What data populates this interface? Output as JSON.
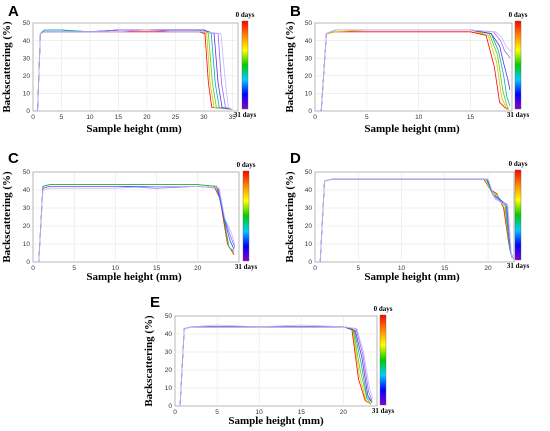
{
  "colors": {
    "series_colors": [
      "#ff0000",
      "#ff8800",
      "#cccc00",
      "#66cc00",
      "#00bb66",
      "#00aacc",
      "#2255ff",
      "#6633cc",
      "#9966ff",
      "#aa88ee",
      "#c8b8f0"
    ],
    "grid": "#e6e6e6",
    "axis": "#888888"
  },
  "colorbar": {
    "top_label": "0 days",
    "bottom_label": "31 days",
    "gradient": [
      "#ff0000",
      "#ff8800",
      "#ffff00",
      "#00cc00",
      "#00ccff",
      "#0000ff",
      "#8800cc"
    ]
  },
  "chart_data": [
    {
      "panel": "A",
      "type": "line",
      "xlabel": "Sample height (mm)",
      "ylabel": "Backscattering (%)",
      "xlim": [
        0,
        36
      ],
      "ylim": [
        0,
        50
      ],
      "xticks": [
        0,
        5,
        10,
        15,
        20,
        25,
        30,
        35
      ],
      "yticks": [
        0,
        10,
        20,
        30,
        40,
        50
      ],
      "grid": true,
      "colorbar": "right",
      "plateau": 45,
      "series": [
        {
          "x": [
            0,
            0.8,
            1.3,
            2,
            5,
            10,
            15,
            20,
            25,
            29,
            30.2,
            30.8,
            31.4,
            35
          ],
          "y": [
            0,
            0,
            44,
            45,
            45,
            45,
            45,
            45,
            45,
            45,
            44,
            16,
            2,
            1
          ]
        },
        {
          "x": [
            0,
            0.8,
            1.3,
            2,
            5,
            10,
            15,
            20,
            25,
            29,
            30.5,
            31.1,
            31.8,
            35
          ],
          "y": [
            0,
            0,
            44,
            46,
            46,
            45,
            46,
            46,
            46,
            46,
            44,
            16,
            2,
            1
          ]
        },
        {
          "x": [
            0,
            0.8,
            1.3,
            2,
            5,
            10,
            15,
            20,
            25,
            30,
            30.8,
            31.5,
            32.2,
            35
          ],
          "y": [
            0,
            0,
            44,
            46,
            46,
            45,
            46,
            46,
            46,
            46,
            44,
            16,
            2,
            1
          ]
        },
        {
          "x": [
            0,
            0.8,
            1.3,
            2,
            5,
            10,
            15,
            20,
            25,
            30,
            31.3,
            32,
            32.7,
            35
          ],
          "y": [
            0,
            0,
            44,
            46,
            46,
            45,
            46,
            46,
            46,
            46,
            44,
            16,
            2,
            1
          ]
        },
        {
          "x": [
            0,
            0.8,
            1.3,
            2,
            5,
            10,
            15,
            20,
            25,
            30,
            31.8,
            32.5,
            33.2,
            35
          ],
          "y": [
            0,
            0,
            44,
            45,
            45,
            45,
            46,
            46,
            46,
            46,
            44,
            16,
            2,
            1
          ]
        },
        {
          "x": [
            0,
            0.8,
            1.3,
            2,
            5,
            10,
            15,
            20,
            25,
            30,
            32.5,
            33.1,
            33.8,
            35
          ],
          "y": [
            0,
            0,
            44,
            45,
            45,
            45,
            46,
            46,
            45,
            45,
            44,
            16,
            2,
            1
          ]
        },
        {
          "x": [
            0,
            0.8,
            1.3,
            2,
            5,
            10,
            15,
            20,
            25,
            30,
            33,
            33.8,
            34.3,
            35
          ],
          "y": [
            0,
            0,
            44,
            45,
            45,
            45,
            45,
            46,
            45,
            45,
            44,
            16,
            2,
            1
          ]
        }
      ]
    },
    {
      "panel": "B",
      "type": "line",
      "xlabel": "Sample height (mm)",
      "ylabel": "Backscattering (%)",
      "xlim": [
        0,
        19
      ],
      "ylim": [
        0,
        50
      ],
      "xticks": [
        0,
        5,
        10,
        15
      ],
      "yticks": [
        0,
        10,
        20,
        30,
        40,
        50
      ],
      "grid": true,
      "colorbar": "right",
      "series": [
        {
          "x": [
            0,
            0.6,
            1.1,
            2,
            5,
            10,
            15,
            16.5,
            17.3,
            17.8,
            18.3,
            18.6
          ],
          "y": [
            0,
            0,
            44,
            45,
            45,
            45,
            45,
            43,
            25,
            5,
            2,
            1
          ]
        },
        {
          "x": [
            0,
            0.6,
            1.1,
            2,
            5,
            10,
            15,
            16.7,
            17.5,
            18,
            18.4,
            18.7
          ],
          "y": [
            0,
            0,
            44,
            45,
            46,
            46,
            46,
            43,
            28,
            8,
            2,
            1
          ]
        },
        {
          "x": [
            0,
            0.6,
            1.1,
            2,
            5,
            10,
            15,
            16.8,
            17.6,
            18.1,
            18.5,
            18.7
          ],
          "y": [
            0,
            0,
            44,
            46,
            46,
            46,
            46,
            44,
            32,
            12,
            3,
            1
          ]
        },
        {
          "x": [
            0,
            0.6,
            1.1,
            2,
            5,
            10,
            15,
            17,
            17.7,
            18.2,
            18.5,
            18.8
          ],
          "y": [
            0,
            0,
            44,
            46,
            46,
            46,
            46,
            44,
            34,
            20,
            8,
            3
          ]
        },
        {
          "x": [
            0,
            0.6,
            1.1,
            2,
            5,
            10,
            15,
            17,
            17.8,
            18.2,
            18.6,
            18.8
          ],
          "y": [
            0,
            0,
            44,
            46,
            46,
            46,
            46,
            44,
            37,
            27,
            18,
            12
          ]
        },
        {
          "x": [
            0,
            0.6,
            1.1,
            2,
            5,
            10,
            15,
            17.2,
            17.9,
            18.3,
            18.6,
            18.8
          ],
          "y": [
            0,
            0,
            44,
            46,
            46,
            46,
            46,
            45,
            40,
            34,
            32,
            30
          ]
        },
        {
          "x": [
            0,
            0.6,
            1.1,
            2,
            5,
            10,
            15,
            17.4,
            18,
            18.4,
            18.7,
            18.9
          ],
          "y": [
            0,
            0,
            44,
            46,
            46,
            46,
            46,
            45,
            42,
            37,
            35,
            34
          ]
        }
      ]
    },
    {
      "panel": "C",
      "type": "line",
      "xlabel": "Sample height (mm)",
      "ylabel": "Backscattering (%)",
      "xlim": [
        0,
        25
      ],
      "ylim": [
        0,
        50
      ],
      "xticks": [
        0,
        5,
        10,
        15,
        20
      ],
      "yticks": [
        0,
        10,
        20,
        30,
        40,
        50
      ],
      "grid": true,
      "colorbar": "right",
      "series": [
        {
          "x": [
            0,
            0.7,
            1.2,
            2,
            5,
            10,
            15,
            20,
            22,
            22.7,
            23.6,
            24.4
          ],
          "y": [
            0,
            0,
            42,
            43,
            43,
            43,
            43,
            43,
            42,
            35,
            10,
            4
          ]
        },
        {
          "x": [
            0,
            0.7,
            1.2,
            2,
            5,
            10,
            15,
            20,
            22.2,
            22.9,
            23.7,
            24.4
          ],
          "y": [
            0,
            0,
            42,
            43,
            43,
            43,
            43,
            43,
            42,
            32,
            9,
            5
          ]
        },
        {
          "x": [
            0,
            0.7,
            1.2,
            2,
            5,
            10,
            15,
            20,
            22.3,
            23,
            23.8,
            24.4
          ],
          "y": [
            0,
            0,
            42,
            43,
            43,
            43,
            43,
            43,
            42,
            28,
            8,
            6
          ]
        },
        {
          "x": [
            0,
            0.7,
            1.2,
            2,
            5,
            10,
            15,
            20,
            22.4,
            23.1,
            23.9,
            24.4
          ],
          "y": [
            0,
            0,
            41,
            42,
            42,
            42,
            42,
            42,
            41,
            26,
            12,
            7
          ]
        },
        {
          "x": [
            0,
            0.7,
            1.2,
            2,
            5,
            10,
            15,
            20,
            22.5,
            23.2,
            24,
            24.5
          ],
          "y": [
            0,
            0,
            41,
            42,
            42,
            42,
            41,
            42,
            41,
            25,
            14,
            8
          ]
        },
        {
          "x": [
            0,
            0.7,
            1.2,
            2,
            5,
            10,
            15,
            20,
            22.6,
            23.3,
            24.1,
            24.5
          ],
          "y": [
            0,
            0,
            40,
            41,
            41,
            41,
            42,
            42,
            41,
            24,
            16,
            9
          ]
        }
      ]
    },
    {
      "panel": "D",
      "type": "line",
      "xlabel": "Sample height (mm)",
      "ylabel": "Backscattering (%)",
      "xlim": [
        0,
        23
      ],
      "ylim": [
        0,
        50
      ],
      "xticks": [
        0,
        5,
        10,
        15,
        20
      ],
      "yticks": [
        0,
        10,
        20,
        30,
        40,
        50
      ],
      "grid": true,
      "colorbar": "right",
      "series": [
        {
          "x": [
            0,
            0.6,
            1.1,
            2,
            5,
            10,
            15,
            19.5,
            20.3,
            21,
            21.8,
            22.4,
            22.8
          ],
          "y": [
            0,
            0,
            45,
            46,
            46,
            46,
            46,
            46,
            40,
            38,
            30,
            10,
            2
          ]
        },
        {
          "x": [
            0,
            0.6,
            1.1,
            2,
            5,
            10,
            15,
            19.6,
            20.4,
            21.1,
            21.9,
            22.5,
            22.8
          ],
          "y": [
            0,
            0,
            45,
            46,
            46,
            46,
            46,
            46,
            39,
            37,
            30,
            8,
            2
          ]
        },
        {
          "x": [
            0,
            0.6,
            1.1,
            2,
            5,
            10,
            15,
            19.8,
            20.5,
            21.2,
            22,
            22.5,
            22.8
          ],
          "y": [
            0,
            0,
            45,
            46,
            46,
            46,
            46,
            46,
            38,
            36,
            31,
            7,
            2
          ]
        },
        {
          "x": [
            0,
            0.6,
            1.1,
            2,
            5,
            10,
            15,
            19.9,
            20.6,
            21.3,
            22.1,
            22.6,
            22.9
          ],
          "y": [
            0,
            0,
            45,
            46,
            46,
            46,
            46,
            46,
            37,
            35,
            32,
            6,
            2
          ]
        },
        {
          "x": [
            0,
            0.6,
            1.1,
            2,
            5,
            10,
            15,
            20,
            20.7,
            21.4,
            22.2,
            22.6,
            22.9
          ],
          "y": [
            0,
            0,
            45,
            46,
            46,
            46,
            46,
            46,
            36,
            34,
            32,
            5,
            2
          ]
        },
        {
          "x": [
            0,
            0.6,
            1.1,
            2,
            5,
            10,
            15,
            20,
            20.8,
            21.5,
            22.3,
            22.7,
            22.9
          ],
          "y": [
            0,
            0,
            45,
            46,
            46,
            46,
            46,
            46,
            35,
            33,
            31,
            4,
            2
          ]
        }
      ]
    },
    {
      "panel": "E",
      "type": "line",
      "xlabel": "Sample height (mm)",
      "ylabel": "Backscattering (%)",
      "xlim": [
        0,
        24
      ],
      "ylim": [
        0,
        50
      ],
      "xticks": [
        0,
        5,
        10,
        15,
        20
      ],
      "yticks": [
        0,
        10,
        20,
        30,
        40,
        50
      ],
      "grid": true,
      "colorbar": "right",
      "series": [
        {
          "x": [
            0,
            0.6,
            1.1,
            2,
            5,
            10,
            15,
            20,
            21,
            21.8,
            22.6,
            23.3
          ],
          "y": [
            0,
            0,
            43,
            44,
            44,
            44,
            44,
            44,
            43,
            15,
            3,
            1
          ]
        },
        {
          "x": [
            0,
            0.6,
            1.1,
            2,
            5,
            10,
            15,
            20,
            21.1,
            21.9,
            22.7,
            23.3
          ],
          "y": [
            0,
            0,
            43,
            44,
            44,
            44,
            44,
            44,
            43,
            17,
            3,
            1
          ]
        },
        {
          "x": [
            0,
            0.6,
            1.1,
            2,
            5,
            10,
            15,
            20,
            21.2,
            22,
            22.8,
            23.3
          ],
          "y": [
            0,
            0,
            43,
            44,
            44,
            44,
            44,
            44,
            42,
            20,
            4,
            1
          ]
        },
        {
          "x": [
            0,
            0.6,
            1.1,
            2,
            5,
            10,
            15,
            20,
            21.3,
            22.1,
            22.8,
            23.4
          ],
          "y": [
            0,
            0,
            43,
            44,
            44,
            44,
            44,
            44,
            42,
            24,
            5,
            2
          ]
        },
        {
          "x": [
            0,
            0.6,
            1.1,
            2,
            5,
            10,
            15,
            20,
            21.4,
            22.2,
            22.9,
            23.4
          ],
          "y": [
            0,
            0,
            43,
            44,
            44,
            44,
            44,
            44,
            42,
            27,
            6,
            2
          ]
        },
        {
          "x": [
            0,
            0.6,
            1.1,
            2,
            5,
            10,
            15,
            20,
            21.5,
            22.3,
            23,
            23.4
          ],
          "y": [
            0,
            0,
            43,
            44,
            44,
            44,
            44,
            44,
            43,
            29,
            8,
            3
          ]
        },
        {
          "x": [
            0,
            0.6,
            1.1,
            2,
            5,
            10,
            15,
            20,
            21.6,
            22.4,
            23.1,
            23.5
          ],
          "y": [
            0,
            0,
            43,
            44,
            45,
            44,
            45,
            44,
            43,
            30,
            10,
            4
          ]
        }
      ]
    }
  ]
}
